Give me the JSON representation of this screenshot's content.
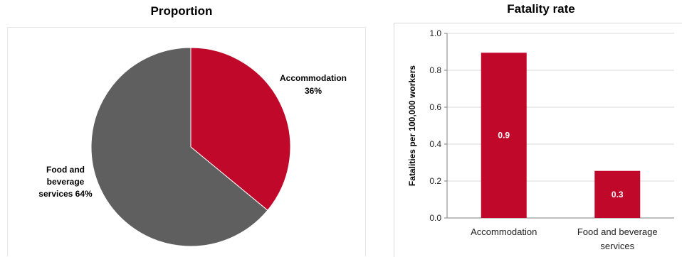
{
  "chart_data": [
    {
      "type": "pie",
      "title": "Proportion",
      "slices": [
        {
          "label": "Accommodation",
          "value_label": "36%",
          "value": 36,
          "color": "#c0092a"
        },
        {
          "label_lines": [
            "Food and",
            "beverage",
            "services 64%"
          ],
          "label": "Food and beverage services",
          "value": 64,
          "color": "#5f5f5f"
        }
      ]
    },
    {
      "type": "bar",
      "title": "Fatality rate",
      "ylabel": "Fatalities per 100,000 workers",
      "ylim": [
        0,
        1.0
      ],
      "yticks": [
        "0.0",
        "0.2",
        "0.4",
        "0.6",
        "0.8",
        "1.0"
      ],
      "grid": true,
      "color": "#c0092a",
      "categories": [
        [
          "Accommodation"
        ],
        [
          "Food and beverage",
          "services"
        ]
      ],
      "values": [
        0.895,
        0.255
      ],
      "data_labels": [
        "0.9",
        "0.3"
      ]
    }
  ]
}
